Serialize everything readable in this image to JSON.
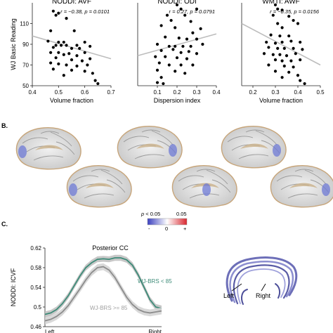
{
  "panel_labels": {
    "b": "B.",
    "c": "C."
  },
  "colorbar": {
    "label_p": "p",
    "label_lt": " < 0.05",
    "label_right": "0.05",
    "minus": "-",
    "zero": "0",
    "plus": "+",
    "colors": {
      "neg": "#3a3fbf",
      "mid": "#ffffff",
      "pos": "#d8262e"
    }
  },
  "brain_colors": {
    "tissue": "#d9d9d9",
    "highlight": "#6e79d6",
    "edge": "#c7a57a"
  },
  "tract_labels": {
    "left": "Left",
    "right": "Right"
  },
  "tract_color": "#6d6fb8",
  "chart_data": [
    {
      "type": "scatter",
      "title": "NODDI: AVF",
      "annotation": {
        "r_text": "r = −0.38, ",
        "p_text": "p = 0.0101"
      },
      "xlabel": "Volume fraction",
      "ylabel": "WJ Basic Reading",
      "xlim": [
        0.4,
        0.7
      ],
      "ylim": [
        50,
        130
      ],
      "xticks": [
        0.4,
        0.5,
        0.6,
        0.7
      ],
      "yticks": [
        50,
        70,
        90,
        110
      ],
      "point_color": "#000000",
      "fit_color": "#bdbdbd",
      "fit": {
        "x": [
          0.4,
          0.7
        ],
        "y": [
          98,
          76
        ]
      },
      "points": [
        [
          0.48,
          122
        ],
        [
          0.49,
          118
        ],
        [
          0.5,
          120
        ],
        [
          0.53,
          115
        ],
        [
          0.47,
          103
        ],
        [
          0.56,
          103
        ],
        [
          0.46,
          93
        ],
        [
          0.5,
          92
        ],
        [
          0.52,
          92
        ],
        [
          0.49,
          89
        ],
        [
          0.51,
          89
        ],
        [
          0.53,
          89
        ],
        [
          0.57,
          89
        ],
        [
          0.6,
          92
        ],
        [
          0.48,
          87
        ],
        [
          0.55,
          86
        ],
        [
          0.58,
          86
        ],
        [
          0.62,
          88
        ],
        [
          0.47,
          82
        ],
        [
          0.5,
          82
        ],
        [
          0.52,
          80
        ],
        [
          0.54,
          81
        ],
        [
          0.57,
          79
        ],
        [
          0.6,
          82
        ],
        [
          0.49,
          77
        ],
        [
          0.55,
          75
        ],
        [
          0.59,
          74
        ],
        [
          0.62,
          76
        ],
        [
          0.47,
          72
        ],
        [
          0.5,
          71
        ],
        [
          0.53,
          70
        ],
        [
          0.57,
          69
        ],
        [
          0.61,
          70
        ],
        [
          0.48,
          66
        ],
        [
          0.55,
          65
        ],
        [
          0.6,
          64
        ],
        [
          0.63,
          62
        ],
        [
          0.52,
          60
        ],
        [
          0.64,
          55
        ],
        [
          0.65,
          52
        ]
      ]
    },
    {
      "type": "scatter",
      "title": "NODDI: ODI",
      "annotation": {
        "r_text": "r = 0.27, ",
        "p_text": "p = 0.0791"
      },
      "xlabel": "Dispersion index",
      "ylabel": "",
      "xlim": [
        0.0,
        0.4
      ],
      "ylim": [
        50,
        130
      ],
      "xticks": [
        0.1,
        0.2,
        0.3,
        0.4
      ],
      "yticks": [],
      "point_color": "#000000",
      "fit_color": "#bdbdbd",
      "fit": {
        "x": [
          0.0,
          0.4
        ],
        "y": [
          79,
          100
        ]
      },
      "points": [
        [
          0.2,
          128
        ],
        [
          0.22,
          124
        ],
        [
          0.3,
          124
        ],
        [
          0.15,
          118
        ],
        [
          0.24,
          118
        ],
        [
          0.17,
          113
        ],
        [
          0.27,
          112
        ],
        [
          0.12,
          108
        ],
        [
          0.19,
          106
        ],
        [
          0.28,
          101
        ],
        [
          0.32,
          105
        ],
        [
          0.14,
          97
        ],
        [
          0.21,
          96
        ],
        [
          0.25,
          95
        ],
        [
          0.3,
          95
        ],
        [
          0.1,
          90
        ],
        [
          0.16,
          88
        ],
        [
          0.19,
          88
        ],
        [
          0.23,
          88
        ],
        [
          0.27,
          88
        ],
        [
          0.33,
          90
        ],
        [
          0.12,
          84
        ],
        [
          0.18,
          85
        ],
        [
          0.22,
          82
        ],
        [
          0.26,
          83
        ],
        [
          0.3,
          81
        ],
        [
          0.09,
          78
        ],
        [
          0.14,
          78
        ],
        [
          0.2,
          77
        ],
        [
          0.25,
          76
        ],
        [
          0.11,
          72
        ],
        [
          0.16,
          70
        ],
        [
          0.22,
          70
        ],
        [
          0.28,
          70
        ],
        [
          0.1,
          65
        ],
        [
          0.19,
          64
        ],
        [
          0.24,
          62
        ],
        [
          0.12,
          58
        ],
        [
          0.1,
          53
        ],
        [
          0.13,
          52
        ]
      ]
    },
    {
      "type": "scatter",
      "title": "WMTI: AWF",
      "annotation": {
        "r_text": "r = −0.35, ",
        "p_text": "p = 0.0156"
      },
      "xlabel": "Volume fraction",
      "ylabel": "",
      "xlim": [
        0.15,
        0.5
      ],
      "ylim": [
        50,
        130
      ],
      "xticks": [
        0.2,
        0.3,
        0.4,
        0.5
      ],
      "yticks": [],
      "point_color": "#000000",
      "fit_color": "#bdbdbd",
      "fit": {
        "x": [
          0.15,
          0.5
        ],
        "y": [
          110,
          70
        ]
      },
      "points": [
        [
          0.3,
          128
        ],
        [
          0.31,
          124
        ],
        [
          0.33,
          123
        ],
        [
          0.29,
          118
        ],
        [
          0.36,
          117
        ],
        [
          0.38,
          113
        ],
        [
          0.31,
          110
        ],
        [
          0.33,
          106
        ],
        [
          0.4,
          110
        ],
        [
          0.28,
          99
        ],
        [
          0.32,
          98
        ],
        [
          0.36,
          98
        ],
        [
          0.26,
          92
        ],
        [
          0.3,
          91
        ],
        [
          0.33,
          92
        ],
        [
          0.37,
          93
        ],
        [
          0.41,
          92
        ],
        [
          0.27,
          87
        ],
        [
          0.31,
          86
        ],
        [
          0.34,
          86
        ],
        [
          0.38,
          86
        ],
        [
          0.42,
          85
        ],
        [
          0.25,
          81
        ],
        [
          0.29,
          80
        ],
        [
          0.32,
          80
        ],
        [
          0.35,
          79
        ],
        [
          0.39,
          81
        ],
        [
          0.3,
          75
        ],
        [
          0.33,
          74
        ],
        [
          0.37,
          74
        ],
        [
          0.41,
          75
        ],
        [
          0.27,
          70
        ],
        [
          0.34,
          69
        ],
        [
          0.38,
          68
        ],
        [
          0.3,
          64
        ],
        [
          0.36,
          63
        ],
        [
          0.4,
          60
        ],
        [
          0.33,
          58
        ],
        [
          0.41,
          55
        ],
        [
          0.43,
          52
        ]
      ]
    },
    {
      "type": "line",
      "title": "Posterior CC",
      "xlabel_left": "Left",
      "xlabel_right": "Right",
      "ylabel": "NODDI: ICVF",
      "xlim": [
        0,
        100
      ],
      "ylim": [
        0.46,
        0.62
      ],
      "yticks": [
        0.46,
        0.5,
        0.54,
        0.58,
        0.62
      ],
      "series": [
        {
          "name": "WJ-BRS < 85",
          "color": "#3d8b78",
          "band_color": "#bdbdbd",
          "x": [
            0,
            5,
            10,
            15,
            20,
            25,
            30,
            35,
            40,
            45,
            50,
            55,
            60,
            65,
            70,
            75,
            80,
            85,
            90,
            95,
            100
          ],
          "y": [
            0.485,
            0.488,
            0.495,
            0.507,
            0.523,
            0.543,
            0.563,
            0.58,
            0.59,
            0.597,
            0.598,
            0.597,
            0.6,
            0.6,
            0.596,
            0.585,
            0.565,
            0.54,
            0.515,
            0.5,
            0.497
          ],
          "err": 0.006
        },
        {
          "name": "WJ-BRS >= 85",
          "color": "#8c8c8c",
          "band_color": "#d2d2d2",
          "x": [
            0,
            5,
            10,
            15,
            20,
            25,
            30,
            35,
            40,
            45,
            50,
            55,
            60,
            65,
            70,
            75,
            80,
            85,
            90,
            95,
            100
          ],
          "y": [
            0.472,
            0.475,
            0.481,
            0.49,
            0.503,
            0.52,
            0.537,
            0.555,
            0.57,
            0.58,
            0.582,
            0.575,
            0.56,
            0.54,
            0.52,
            0.505,
            0.495,
            0.49,
            0.488,
            0.49,
            0.492
          ],
          "err": 0.007
        }
      ]
    }
  ]
}
